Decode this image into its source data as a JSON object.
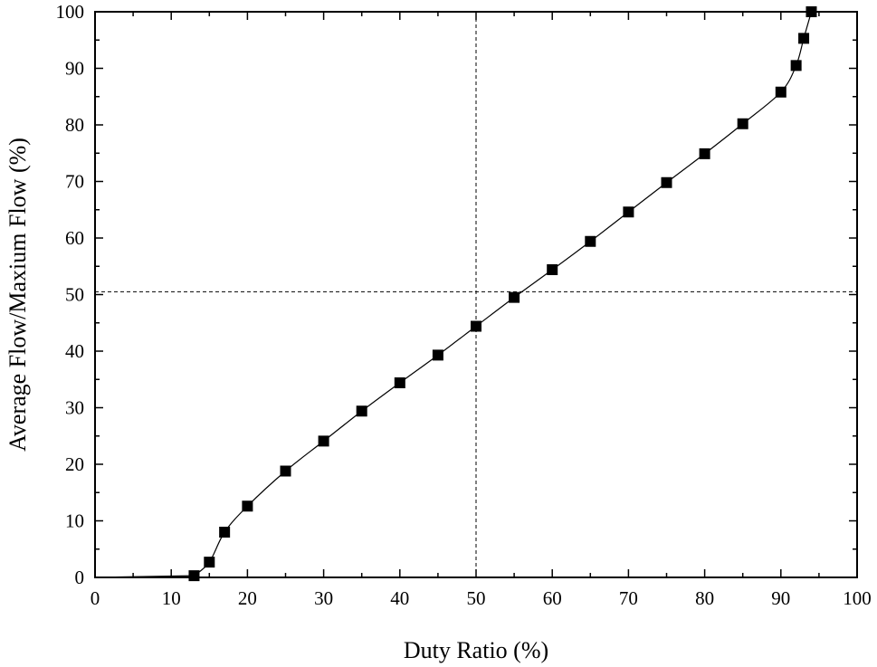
{
  "chart_data": {
    "type": "line",
    "title": "",
    "xlabel": "Duty Ratio (%)",
    "ylabel": "Average Flow/Maxium Flow (%)",
    "xlim": [
      0,
      100
    ],
    "ylim": [
      0,
      100
    ],
    "x_ticks": [
      0,
      10,
      20,
      30,
      40,
      50,
      60,
      70,
      80,
      90,
      100
    ],
    "y_ticks": [
      0,
      10,
      20,
      30,
      40,
      50,
      60,
      70,
      80,
      90,
      100
    ],
    "x_tick_labels": [
      "0",
      "10",
      "20",
      "30",
      "40",
      "50",
      "60",
      "70",
      "80",
      "90",
      "100"
    ],
    "y_tick_labels": [
      "0",
      "10",
      "20",
      "30",
      "40",
      "50",
      "60",
      "70",
      "80",
      "90",
      "100"
    ],
    "grid": false,
    "legend": "none",
    "marker": "square",
    "series_color": "#000000",
    "reference_lines": [
      {
        "orientation": "vertical",
        "x": 50,
        "style": "dashed"
      },
      {
        "orientation": "horizontal",
        "y": 50.5,
        "style": "dashed"
      }
    ],
    "series": [
      {
        "points": [
          {
            "x": 13,
            "y": 0.3
          },
          {
            "x": 15,
            "y": 2.7
          },
          {
            "x": 17,
            "y": 8.0
          },
          {
            "x": 20,
            "y": 12.6
          },
          {
            "x": 25,
            "y": 18.8
          },
          {
            "x": 30,
            "y": 24.1
          },
          {
            "x": 35,
            "y": 29.4
          },
          {
            "x": 40,
            "y": 34.4
          },
          {
            "x": 45,
            "y": 39.3
          },
          {
            "x": 50,
            "y": 44.4
          },
          {
            "x": 55,
            "y": 49.5
          },
          {
            "x": 60,
            "y": 54.4
          },
          {
            "x": 65,
            "y": 59.4
          },
          {
            "x": 70,
            "y": 64.6
          },
          {
            "x": 75,
            "y": 69.8
          },
          {
            "x": 80,
            "y": 74.9
          },
          {
            "x": 85,
            "y": 80.2
          },
          {
            "x": 90,
            "y": 85.8
          },
          {
            "x": 92,
            "y": 90.5
          },
          {
            "x": 93,
            "y": 95.3
          },
          {
            "x": 94,
            "y": 100.0
          }
        ]
      }
    ]
  }
}
